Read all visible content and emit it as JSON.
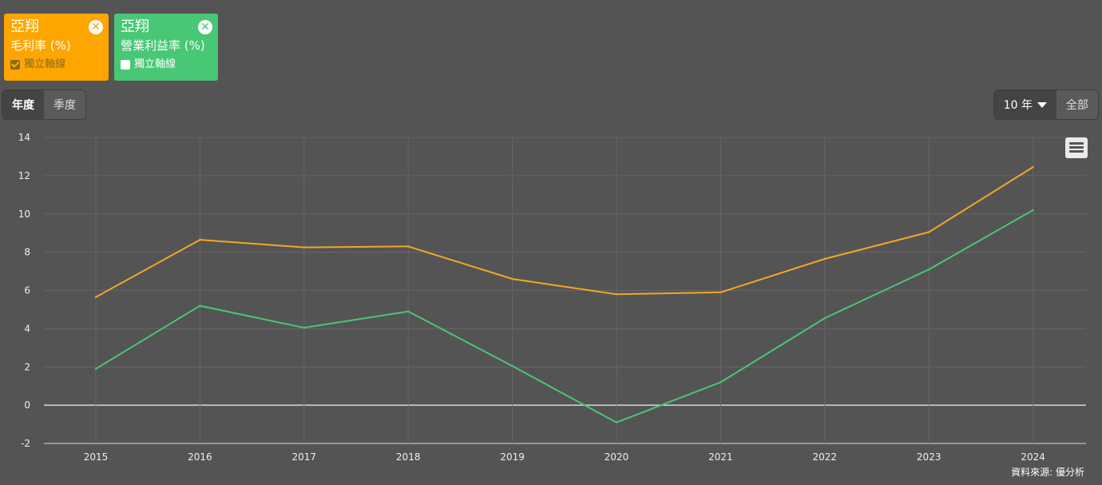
{
  "series_cards": [
    {
      "company": "亞翔",
      "metric": "毛利率 (%)",
      "axis_label": "獨立軸線",
      "axis_checked": true,
      "color": "#ffa500"
    },
    {
      "company": "亞翔",
      "metric": "營業利益率 (%)",
      "axis_label": "獨立軸線",
      "axis_checked": false,
      "color": "#48c774"
    }
  ],
  "period_toggle": {
    "annual": "年度",
    "quarterly": "季度",
    "active": "annual"
  },
  "range_toggle": {
    "selected": "10 年",
    "all": "全部"
  },
  "menu_icon": "hamburger-icon",
  "source_text": "資料來源: 優分析",
  "chart_data": {
    "type": "line",
    "x": [
      "2015",
      "2016",
      "2017",
      "2018",
      "2019",
      "2020",
      "2021",
      "2022",
      "2023",
      "2024"
    ],
    "yticks": [
      "14",
      "12",
      "10",
      "8",
      "6",
      "4",
      "2",
      "0",
      "-2"
    ],
    "ylim": [
      -2,
      14
    ],
    "grid": true,
    "series": [
      {
        "values": [
          5.65,
          8.65,
          8.25,
          8.3,
          6.6,
          5.8,
          5.9,
          7.65,
          9.05,
          12.45
        ],
        "color": "#f5a623"
      },
      {
        "values": [
          1.9,
          5.2,
          4.05,
          4.9,
          2.05,
          -0.9,
          1.2,
          4.55,
          7.1,
          10.2
        ],
        "color": "#48c774"
      }
    ]
  }
}
